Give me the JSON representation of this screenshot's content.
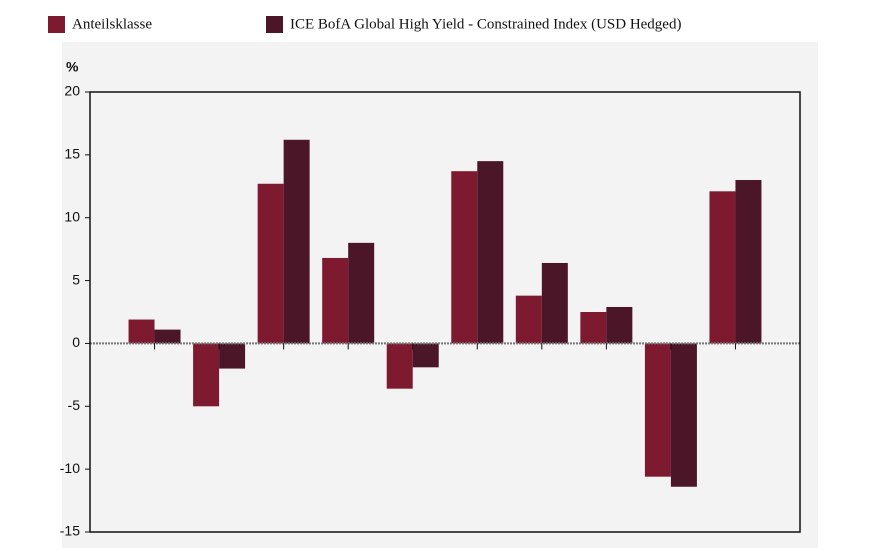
{
  "chart_data": {
    "type": "bar",
    "y_label": "%",
    "categories": [
      null,
      null,
      null,
      null,
      null,
      null,
      null,
      null,
      null,
      null
    ],
    "series": [
      {
        "name": "Anteilsklasse",
        "color": "#7d1a30",
        "values": [
          1.9,
          -5.0,
          12.7,
          6.8,
          -3.6,
          13.7,
          3.8,
          2.5,
          -10.6,
          12.1
        ]
      },
      {
        "name": "ICE BofA Global High Yield - Constrained Index (USD Hedged)",
        "color": "#4a1628",
        "values": [
          1.1,
          -2.0,
          16.2,
          8.0,
          -1.9,
          14.5,
          6.4,
          2.9,
          -11.4,
          13.0
        ]
      }
    ],
    "ylim": [
      -15,
      20
    ],
    "yticks": [
      -15,
      -10,
      -5,
      0,
      5,
      10,
      15,
      20
    ]
  }
}
